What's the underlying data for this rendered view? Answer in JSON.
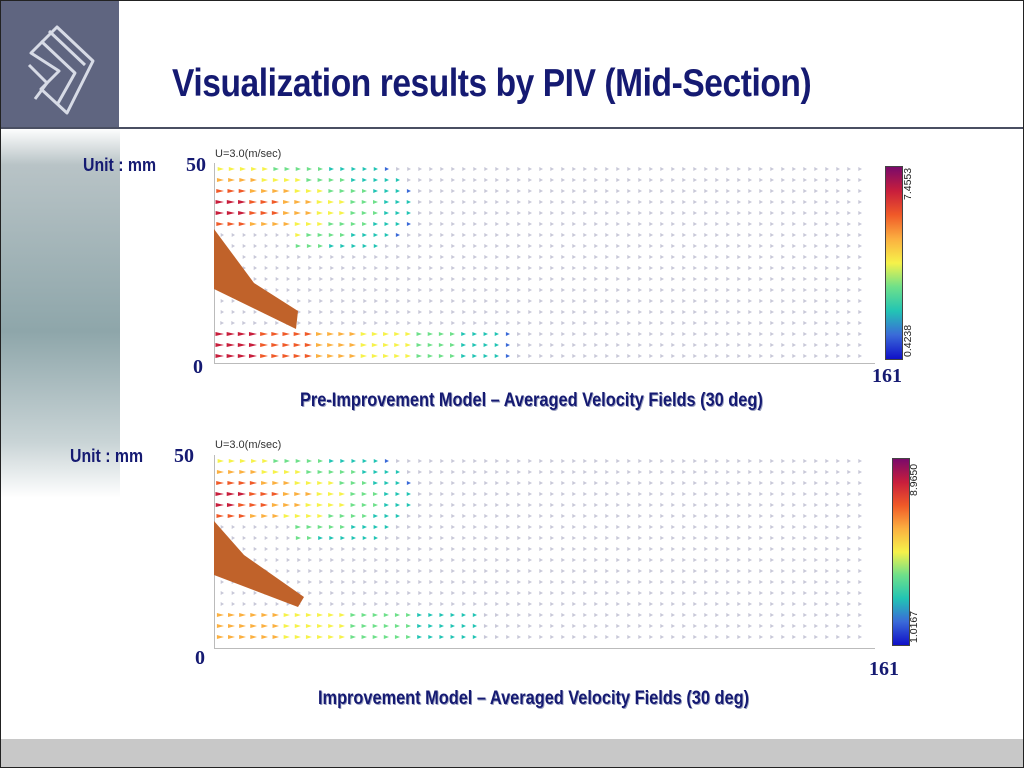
{
  "slide": {
    "title": "Visualization results by PIV (Mid-Section)"
  },
  "panels": [
    {
      "unit_label": "Unit : mm",
      "y_top_label": "50",
      "y_bottom_label": "0",
      "x_right_label": "161",
      "scale_text": "U=3.0(m/sec)",
      "colorbar_max": "7.4553",
      "colorbar_min": "0.4238",
      "caption": "Pre-Improvement Model – Averaged Velocity Fields (30 deg)"
    },
    {
      "unit_label": "Unit : mm",
      "y_top_label": "50",
      "y_bottom_label": "0",
      "x_right_label": "161",
      "scale_text": "U=3.0(m/sec)",
      "colorbar_max": "8.9650",
      "colorbar_min": "1.0167",
      "caption": "Improvement Model – Averaged Velocity Fields (30 deg)"
    }
  ],
  "colors": {
    "title": "#151a72",
    "header_block": "#5f6580",
    "nozzle": "#c0622a"
  },
  "colormap": [
    "#7a0a6a",
    "#c81e3c",
    "#f05a28",
    "#fbb040",
    "#f6f24a",
    "#6ee08a",
    "#22c4b4",
    "#3a6ad8",
    "#1010c8"
  ]
}
